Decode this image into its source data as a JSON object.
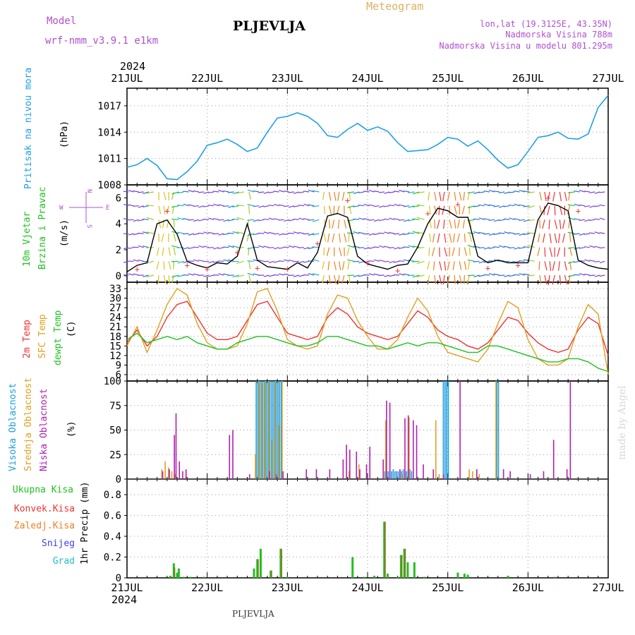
{
  "header": {
    "model_label": "Model",
    "model_name": "wrf-nmm_v3.9.1 e1km",
    "station": "PLJEVLJA",
    "meteogram_label": "Meteogram",
    "coords": "lon,lat (19.3125E, 43.35N)",
    "elevation": "Nadmorska Visina 788m",
    "model_elevation": "Nadmorska Visina u modelu 801.295m",
    "year_top": "2024",
    "year_bottom": "2024",
    "footer_station": "PLJEVLJA",
    "credit": "made by Angel"
  },
  "colors": {
    "pressure": "#1ea0e6",
    "wind_label": "#20c020",
    "wind_label2": "#20c020",
    "t2m": "#ee3333",
    "tsfc": "#e0a020",
    "dewpt": "#20c020",
    "high_cloud": "#1e9ee0",
    "mid_cloud": "#e0a020",
    "low_cloud": "#b020b0",
    "total_precip": "#20c020",
    "conv_precip": "#ee3333",
    "frz_precip": "#f08020",
    "snow": "#4040ee",
    "graupel": "#20c0c0",
    "purple_text": "#b050d0",
    "orange_text": "#e0b060"
  },
  "chart_data": [
    {
      "type": "line",
      "title": "Pritisak na nivou mora",
      "ylabel": "(hPa)",
      "x_ticks": [
        "21JUL",
        "22JUL",
        "23JUL",
        "24JUL",
        "25JUL",
        "26JUL",
        "27JUL"
      ],
      "ylim": [
        1008,
        1019
      ],
      "y_ticks": [
        1008,
        1011,
        1014,
        1017
      ],
      "grid": true,
      "x_unit": "hours since 21JUL 00",
      "series": [
        {
          "name": "Pritisak na nivou mora",
          "color_key": "pressure",
          "x": [
            0,
            3,
            6,
            9,
            12,
            15,
            18,
            21,
            24,
            27,
            30,
            33,
            36,
            39,
            42,
            45,
            48,
            51,
            54,
            57,
            60,
            63,
            66,
            69,
            72,
            75,
            78,
            81,
            84,
            87,
            90,
            93,
            96,
            99,
            102,
            105,
            108,
            111,
            114,
            117,
            120,
            123,
            126,
            129,
            132,
            135,
            138,
            141,
            144
          ],
          "y": [
            1010.0,
            1010.3,
            1011.0,
            1010.2,
            1008.7,
            1008.6,
            1009.5,
            1010.7,
            1012.5,
            1012.8,
            1013.2,
            1012.6,
            1011.8,
            1012.2,
            1014.0,
            1015.6,
            1015.8,
            1016.2,
            1015.8,
            1015.0,
            1013.6,
            1013.4,
            1014.3,
            1015.0,
            1014.2,
            1014.6,
            1014.1,
            1012.8,
            1011.8,
            1011.9,
            1012.0,
            1012.6,
            1013.4,
            1013.2,
            1012.4,
            1013.0,
            1012.0,
            1010.8,
            1009.9,
            1010.3,
            1011.8,
            1013.4,
            1013.6,
            1014.0,
            1013.3,
            1013.2,
            1013.8,
            1016.8,
            1018.2
          ]
        }
      ]
    },
    {
      "type": "barbs",
      "title": "10m Vjetar Brzina i Pravac",
      "ylabel": "(m/s)",
      "direction_key": [
        "N",
        "E",
        "S",
        "W"
      ],
      "ylim": [
        -0.5,
        7
      ],
      "y_ticks": [
        0,
        2,
        4,
        6
      ],
      "x_unit": "hours since 21JUL 00",
      "series": [
        {
          "name": "speed",
          "color": "#000000",
          "x": [
            0,
            3,
            6,
            9,
            12,
            15,
            18,
            21,
            24,
            27,
            30,
            33,
            36,
            39,
            42,
            45,
            48,
            51,
            54,
            57,
            60,
            63,
            66,
            69,
            72,
            75,
            78,
            81,
            84,
            87,
            90,
            93,
            96,
            99,
            102,
            105,
            108,
            111,
            114,
            117,
            120,
            123,
            126,
            129,
            132,
            135,
            138,
            141,
            144
          ],
          "y": [
            0.3,
            0.8,
            1.0,
            4.0,
            4.3,
            3.2,
            1.1,
            0.8,
            0.6,
            1.0,
            0.9,
            1.5,
            4.0,
            1.2,
            0.7,
            0.6,
            0.5,
            1.0,
            0.6,
            1.8,
            4.6,
            4.8,
            4.5,
            1.5,
            0.9,
            0.7,
            0.5,
            0.8,
            0.9,
            2.2,
            4.0,
            5.2,
            5.0,
            4.5,
            4.5,
            1.5,
            1.0,
            1.2,
            1.0,
            1.0,
            1.0,
            4.3,
            5.6,
            5.4,
            5.0,
            1.2,
            0.8,
            0.6,
            0.5
          ]
        },
        {
          "name": "gust",
          "color": "#ee3333",
          "x": [
            3,
            12,
            18,
            24,
            33,
            39,
            48,
            57,
            66,
            72,
            81,
            90,
            99,
            108,
            117,
            126,
            135
          ],
          "y": [
            0.5,
            5.0,
            0.8,
            0.5,
            1.8,
            0.6,
            0.5,
            2.5,
            5.8,
            1.0,
            0.4,
            4.8,
            5.5,
            0.6,
            0.8,
            6.0,
            5.0
          ]
        }
      ]
    },
    {
      "type": "line",
      "title": "2m Temp / SFC Temp / dewpt Temp",
      "ylabel": "(C)",
      "ylim": [
        4,
        35
      ],
      "y_ticks": [
        6,
        9,
        12,
        15,
        18,
        21,
        24,
        27,
        30,
        33
      ],
      "grid": true,
      "x_unit": "hours since 21JUL 00",
      "series": [
        {
          "name": "2m Temp",
          "color_key": "t2m",
          "x": [
            0,
            3,
            6,
            9,
            12,
            15,
            18,
            21,
            24,
            27,
            30,
            33,
            36,
            39,
            42,
            45,
            48,
            51,
            54,
            57,
            60,
            63,
            66,
            69,
            72,
            75,
            78,
            81,
            84,
            87,
            90,
            93,
            96,
            99,
            102,
            105,
            108,
            111,
            114,
            117,
            120,
            123,
            126,
            129,
            132,
            135,
            138,
            141,
            144
          ],
          "y": [
            16,
            20,
            15,
            18,
            24,
            28,
            29,
            24,
            19,
            17,
            17,
            18,
            23,
            28,
            29,
            24,
            19,
            18,
            17,
            18,
            24,
            27,
            25,
            21,
            19,
            18,
            17,
            18,
            22,
            26,
            24,
            20,
            18,
            17,
            15,
            14,
            16,
            20,
            24,
            23,
            19,
            16,
            14,
            13,
            14,
            20,
            24,
            22,
            12
          ]
        },
        {
          "name": "SFC Temp",
          "color_key": "tsfc",
          "x": [
            0,
            3,
            6,
            9,
            12,
            15,
            18,
            21,
            24,
            27,
            30,
            33,
            36,
            39,
            42,
            45,
            48,
            51,
            54,
            57,
            60,
            63,
            66,
            69,
            72,
            75,
            78,
            81,
            84,
            87,
            90,
            93,
            96,
            99,
            102,
            105,
            108,
            111,
            114,
            117,
            120,
            123,
            126,
            129,
            132,
            135,
            138,
            141,
            144
          ],
          "y": [
            15,
            21,
            13,
            20,
            28,
            33,
            31,
            22,
            16,
            14,
            14,
            15,
            22,
            32,
            33,
            26,
            17,
            15,
            14,
            15,
            25,
            31,
            30,
            23,
            18,
            14,
            14,
            17,
            24,
            30,
            26,
            18,
            13,
            12,
            11,
            10,
            14,
            22,
            29,
            27,
            17,
            11,
            9,
            9,
            11,
            21,
            28,
            25,
            6
          ]
        },
        {
          "name": "dewpt Temp",
          "color_key": "dewpt",
          "x": [
            0,
            3,
            6,
            9,
            12,
            15,
            18,
            21,
            24,
            27,
            30,
            33,
            36,
            39,
            42,
            45,
            48,
            51,
            54,
            57,
            60,
            63,
            66,
            69,
            72,
            75,
            78,
            81,
            84,
            87,
            90,
            93,
            96,
            99,
            102,
            105,
            108,
            111,
            114,
            117,
            120,
            123,
            126,
            129,
            132,
            135,
            138,
            141,
            144
          ],
          "y": [
            17,
            19,
            16,
            17,
            18,
            17,
            18,
            16,
            15,
            14,
            14,
            16,
            17,
            18,
            18,
            17,
            16,
            15,
            15,
            16,
            18,
            18,
            17,
            16,
            15,
            15,
            14,
            15,
            16,
            15,
            16,
            16,
            15,
            14,
            13,
            13,
            15,
            15,
            14,
            13,
            12,
            11,
            10,
            10,
            11,
            11,
            10,
            8,
            7
          ]
        }
      ]
    },
    {
      "type": "bar",
      "title": "Visoka / Srednja / Niska Oblacnost",
      "ylabel": "(%)",
      "ylim": [
        0,
        100
      ],
      "y_ticks": [
        0,
        25,
        50,
        75,
        100
      ],
      "grid": true,
      "x_unit": "hours since 21JUL 00",
      "series": [
        {
          "name": "Visoka Oblacnost",
          "color_key": "high_cloud",
          "x": [
            38.5,
            39,
            39.5,
            40,
            40.5,
            41,
            41.5,
            42,
            42.5,
            43,
            43.5,
            44,
            44.5,
            45,
            45.5,
            46,
            77,
            77.5,
            78,
            78.5,
            79,
            79.5,
            80,
            80.5,
            81,
            81.5,
            82,
            82.5,
            83,
            83.5,
            84,
            84.5,
            85,
            94.5,
            95,
            95.5,
            96,
            110.5,
            111
          ],
          "y": [
            100,
            100,
            100,
            100,
            100,
            100,
            100,
            100,
            100,
            100,
            100,
            100,
            100,
            100,
            100,
            100,
            8,
            8,
            8,
            10,
            8,
            10,
            8,
            8,
            8,
            8,
            8,
            10,
            8,
            8,
            10,
            10,
            8,
            100,
            100,
            100,
            100,
            100,
            100
          ]
        },
        {
          "name": "Srednja Oblacnost",
          "color_key": "mid_cloud",
          "x": [
            10,
            11,
            12,
            13,
            14,
            38,
            39,
            40,
            41,
            42,
            43,
            44,
            45,
            46,
            66,
            69,
            77,
            82,
            84,
            92,
            93,
            102,
            103,
            105,
            110
          ],
          "y": [
            10,
            18,
            12,
            8,
            5,
            25,
            100,
            98,
            100,
            100,
            40,
            100,
            55,
            100,
            8,
            15,
            60,
            5,
            63,
            60,
            5,
            10,
            8,
            5,
            100
          ]
        },
        {
          "name": "Niska Oblacnost",
          "color_key": "low_cloud",
          "x": [
            10,
            12,
            14,
            13.5,
            15,
            16,
            17,
            30,
            31,
            36,
            42,
            44,
            46,
            53,
            56,
            60,
            64,
            65,
            66,
            68,
            69,
            71,
            72,
            76,
            77,
            78,
            81,
            82.5,
            83.5,
            85,
            86,
            88,
            91,
            94,
            99,
            104,
            112,
            114,
            120,
            124,
            127,
            131,
            132
          ],
          "y": [
            8,
            10,
            67,
            45,
            18,
            8,
            10,
            45,
            50,
            5,
            8,
            5,
            8,
            10,
            10,
            10,
            20,
            35,
            30,
            28,
            10,
            15,
            33,
            20,
            80,
            78,
            10,
            62,
            65,
            60,
            55,
            15,
            10,
            5,
            100,
            10,
            10,
            8,
            5,
            8,
            40,
            10,
            100
          ]
        }
      ]
    },
    {
      "type": "bar",
      "title": "1hr Precip",
      "ylabel": "1hr Precip (mm)",
      "ylim": [
        0,
        0.95
      ],
      "y_ticks": [
        0,
        0.2,
        0.4,
        0.6,
        0.8
      ],
      "grid": true,
      "x_unit": "hours since 21JUL 00",
      "legend": [
        "Ukupna Kisa",
        "Konvek.Kisa",
        "Zaledj.Kisa",
        "Snijeg",
        "Grad"
      ],
      "series": [
        {
          "name": "Ukupna Kisa",
          "color_key": "total_precip",
          "x": [
            13,
            14,
            15,
            15.5,
            17,
            19,
            23,
            38,
            39,
            40,
            43,
            46,
            48,
            67.5,
            71,
            74,
            77,
            78,
            81,
            82,
            83,
            84,
            86,
            89,
            99,
            101,
            102,
            114,
            128
          ],
          "y": [
            0.02,
            0.14,
            0.05,
            0.09,
            0.01,
            0.01,
            0.01,
            0.09,
            0.18,
            0.28,
            0.07,
            0.28,
            0.01,
            0.2,
            0.01,
            0.02,
            0.54,
            0.04,
            0.01,
            0.22,
            0.28,
            0.15,
            0.15,
            0.01,
            0.05,
            0.04,
            0.03,
            0.02,
            0.01
          ]
        },
        {
          "name": "Konvek.Kisa",
          "color_key": "conv_precip",
          "x": [
            14,
            39,
            43,
            46,
            77,
            82,
            83
          ],
          "y": [
            0.1,
            0.18,
            0.07,
            0.28,
            0.54,
            0.22,
            0.28
          ]
        }
      ]
    }
  ],
  "axis": {
    "day_labels": [
      "21JUL",
      "22JUL",
      "23JUL",
      "24JUL",
      "25JUL",
      "26JUL",
      "27JUL"
    ],
    "panel1_labels": {
      "title": "Pritisak na nivou mora",
      "unit": "(hPa)"
    },
    "panel2_labels": {
      "title": "10m Vjetar",
      "title2": "Brzina i Pravac",
      "unit": "(m/s)",
      "compass_n": "N",
      "compass_e": "E",
      "compass_s": "S",
      "compass_w": "W"
    },
    "panel3_labels": {
      "t2m": "2m Temp",
      "tsfc": "SFC Temp",
      "dew": "dewpt Temp",
      "unit": "(C)"
    },
    "panel4_labels": {
      "high": "Visoka Oblacnost",
      "mid": "Srednja Oblacnost",
      "low": "Niska Oblacnost",
      "unit": "(%)"
    },
    "panel5_labels": {
      "total": "Ukupna Kisa",
      "conv": "Konvek.Kisa",
      "frz": "Zaledj.Kisa",
      "snow": "Snijeg",
      "grad": "Grad",
      "unit": "1hr Precip (mm)"
    }
  }
}
